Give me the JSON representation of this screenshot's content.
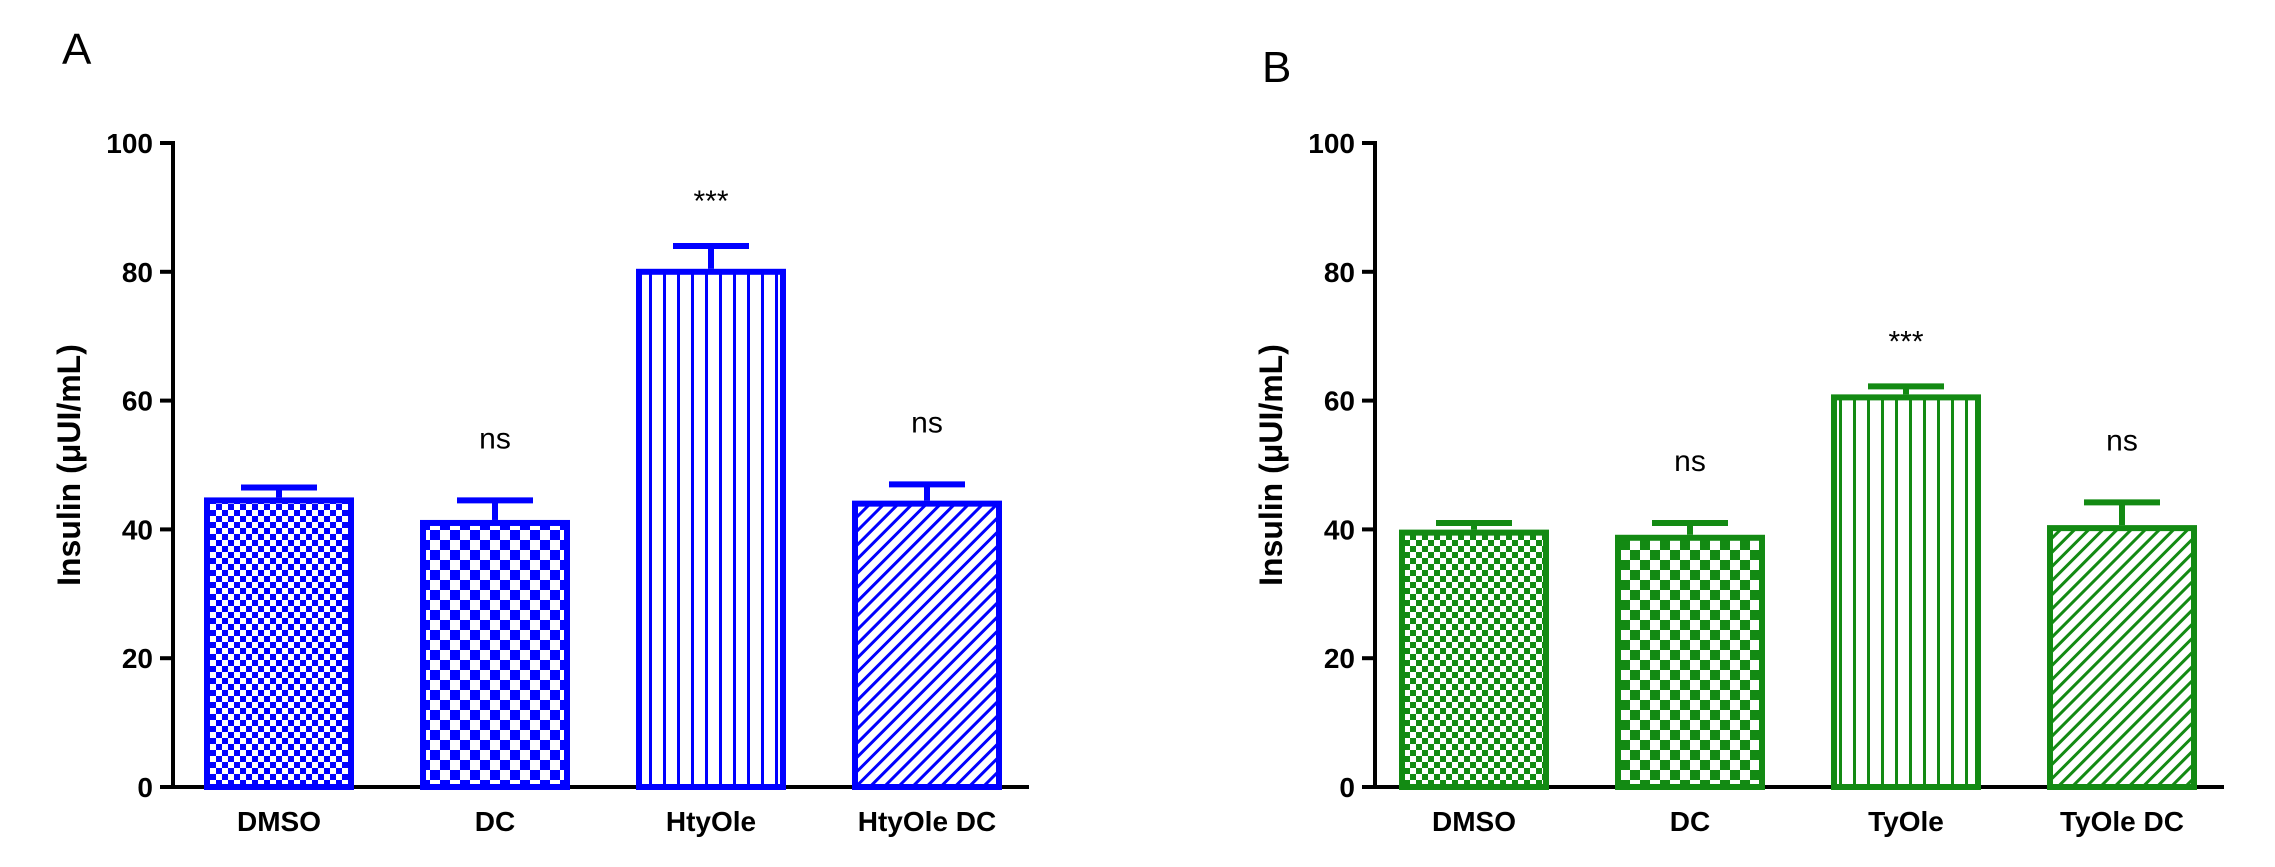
{
  "chart_data": [
    {
      "type": "bar",
      "panel_label": "A",
      "categories": [
        "DMSO",
        "DC",
        "HtyOle",
        "HtyOle DC"
      ],
      "values": [
        44.5,
        41.0,
        80.0,
        44.0
      ],
      "errors": [
        2.0,
        3.5,
        4.0,
        3.0
      ],
      "annotations": [
        "",
        "ns",
        "***",
        "ns"
      ],
      "patterns": [
        "dense-check",
        "check",
        "vertical",
        "diagonal"
      ],
      "ylabel": "Insulin (μUI/mL)",
      "ylim": [
        0,
        100
      ],
      "yticks": [
        0,
        20,
        40,
        60,
        80,
        100
      ],
      "color": "#0000ff"
    },
    {
      "type": "bar",
      "panel_label": "B",
      "categories": [
        "DMSO",
        "DC",
        "TyOle",
        "TyOle DC"
      ],
      "values": [
        39.5,
        38.7,
        60.5,
        40.2
      ],
      "errors": [
        1.5,
        2.3,
        1.7,
        4.0
      ],
      "annotations": [
        "",
        "ns",
        "***",
        "ns"
      ],
      "patterns": [
        "dense-check",
        "check",
        "vertical",
        "diagonal"
      ],
      "ylabel": "Insulin (μUI/mL)",
      "ylim": [
        0,
        100
      ],
      "yticks": [
        0,
        20,
        40,
        60,
        80,
        100
      ],
      "color": "#138a13"
    }
  ]
}
